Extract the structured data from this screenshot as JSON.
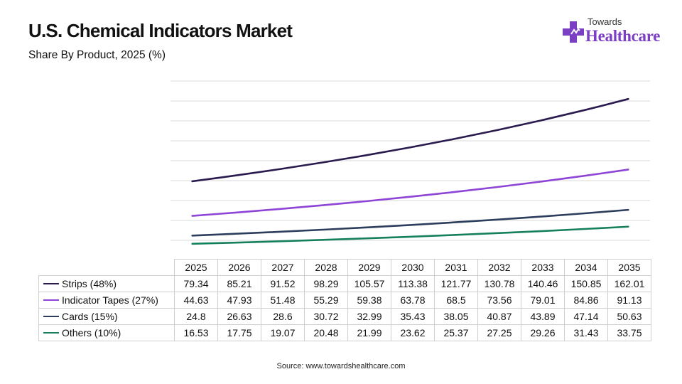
{
  "header": {
    "title": "U.S. Chemical Indicators Market",
    "subtitle": "Share By Product, 2025 (%)"
  },
  "logo": {
    "line1": "Towards",
    "line2": "Healthcare"
  },
  "source": "Source: www.towardshealthcare.com",
  "chart_data": {
    "type": "line",
    "x": [
      "2025",
      "2026",
      "2027",
      "2028",
      "2029",
      "2030",
      "2031",
      "2032",
      "2033",
      "2034",
      "2035"
    ],
    "ylim": [
      0,
      180
    ],
    "grid": true,
    "legend": "table-below",
    "series": [
      {
        "name": "Strips (48%)",
        "color": "#2a1a4e",
        "values": [
          79.34,
          85.21,
          91.52,
          98.29,
          105.57,
          113.38,
          121.77,
          130.78,
          140.46,
          150.85,
          162.01
        ]
      },
      {
        "name": "Indicator Tapes (27%)",
        "color": "#8e44d6",
        "values": [
          44.63,
          47.93,
          51.48,
          55.29,
          59.38,
          63.78,
          68.5,
          73.56,
          79.01,
          84.86,
          91.13
        ]
      },
      {
        "name": "Cards (15%)",
        "color": "#2c3e5c",
        "values": [
          24.8,
          26.63,
          28.6,
          30.72,
          32.99,
          35.43,
          38.05,
          40.87,
          43.89,
          47.14,
          50.63
        ]
      },
      {
        "name": "Others (10%)",
        "color": "#16805a",
        "values": [
          16.53,
          17.75,
          19.07,
          20.48,
          21.99,
          23.62,
          25.37,
          27.25,
          29.26,
          31.43,
          33.75
        ]
      }
    ],
    "table_labels": [
      [
        "79.34",
        "85.21",
        "91.52",
        "98.29",
        "105.57",
        "113.38",
        "121.77",
        "130.78",
        "140.46",
        "150.85",
        "162.01"
      ],
      [
        "44.63",
        "47.93",
        "51.48",
        "55.29",
        "59.38",
        "63.78",
        "68.5",
        "73.56",
        "79.01",
        "84.86",
        "91.13"
      ],
      [
        "24.8",
        "26.63",
        "28.6",
        "30.72",
        "32.99",
        "35.43",
        "38.05",
        "40.87",
        "43.89",
        "47.14",
        "50.63"
      ],
      [
        "16.53",
        "17.75",
        "19.07",
        "20.48",
        "21.99",
        "23.62",
        "25.37",
        "27.25",
        "29.26",
        "31.43",
        "33.75"
      ]
    ]
  }
}
